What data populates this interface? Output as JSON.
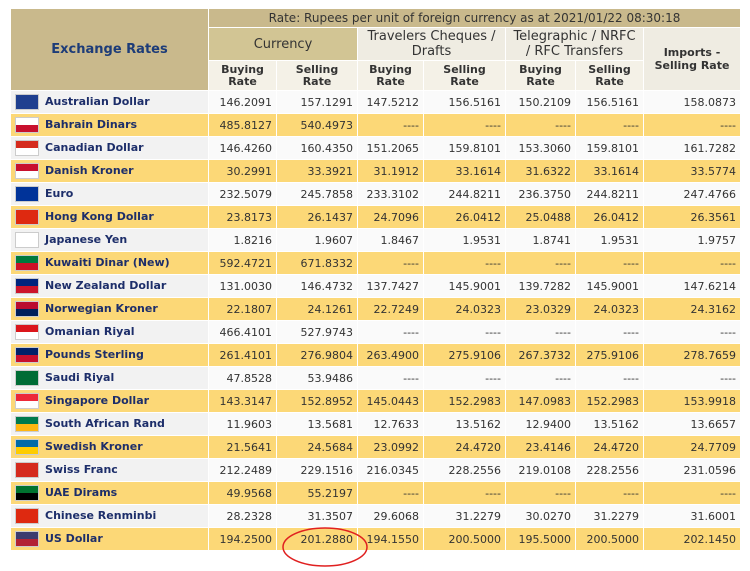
{
  "header": {
    "title": "Exchange Rates",
    "rate_note": "Rate: Rupees per unit of foreign currency as at 2021/01/22  08:30:18",
    "groups": [
      "Currency",
      "Travelers Cheques / Drafts",
      "Telegraphic / NRFC / RFC Transfers",
      "Imports - Selling Rate"
    ],
    "subheaders": [
      "Buying Rate",
      "Selling Rate",
      "Buying Rate",
      "Selling Rate",
      "Buying Rate",
      "Selling Rate"
    ]
  },
  "table": {
    "rows": [
      [
        "Australian Dollar",
        "146.2091",
        "157.1291",
        "147.5212",
        "156.5161",
        "150.2109",
        "156.5161",
        "158.0873"
      ],
      [
        "Bahrain Dinars",
        "485.8127",
        "540.4973",
        "----",
        "----",
        "----",
        "----",
        "----"
      ],
      [
        "Canadian Dollar",
        "146.4260",
        "160.4350",
        "151.2065",
        "159.8101",
        "153.3060",
        "159.8101",
        "161.7282"
      ],
      [
        "Danish Kroner",
        "30.2991",
        "33.3921",
        "31.1912",
        "33.1614",
        "31.6322",
        "33.1614",
        "33.5774"
      ],
      [
        "Euro",
        "232.5079",
        "245.7858",
        "233.3102",
        "244.8211",
        "236.3750",
        "244.8211",
        "247.4766"
      ],
      [
        "Hong Kong Dollar",
        "23.8173",
        "26.1437",
        "24.7096",
        "26.0412",
        "25.0488",
        "26.0412",
        "26.3561"
      ],
      [
        "Japanese Yen",
        "1.8216",
        "1.9607",
        "1.8467",
        "1.9531",
        "1.8741",
        "1.9531",
        "1.9757"
      ],
      [
        "Kuwaiti Dinar (New)",
        "592.4721",
        "671.8332",
        "----",
        "----",
        "----",
        "----",
        "----"
      ],
      [
        "New Zealand Dollar",
        "131.0030",
        "146.4732",
        "137.7427",
        "145.9001",
        "139.7282",
        "145.9001",
        "147.6214"
      ],
      [
        "Norwegian Kroner",
        "22.1807",
        "24.1261",
        "22.7249",
        "24.0323",
        "23.0329",
        "24.0323",
        "24.3162"
      ],
      [
        "Omanian Riyal",
        "466.4101",
        "527.9743",
        "----",
        "----",
        "----",
        "----",
        "----"
      ],
      [
        "Pounds Sterling",
        "261.4101",
        "276.9804",
        "263.4900",
        "275.9106",
        "267.3732",
        "275.9106",
        "278.7659"
      ],
      [
        "Saudi Riyal",
        "47.8528",
        "53.9486",
        "----",
        "----",
        "----",
        "----",
        "----"
      ],
      [
        "Singapore Dollar",
        "143.3147",
        "152.8952",
        "145.0443",
        "152.2983",
        "147.0983",
        "152.2983",
        "153.9918"
      ],
      [
        "South African Rand",
        "11.9603",
        "13.5681",
        "12.7633",
        "13.5162",
        "12.9400",
        "13.5162",
        "13.6657"
      ],
      [
        "Swedish Kroner",
        "21.5641",
        "24.5684",
        "23.0992",
        "24.4720",
        "23.4146",
        "24.4720",
        "24.7709"
      ],
      [
        "Swiss Franc",
        "212.2489",
        "229.1516",
        "216.0345",
        "228.2556",
        "219.0108",
        "228.2556",
        "231.0596"
      ],
      [
        "UAE Dirams",
        "49.9568",
        "55.2197",
        "----",
        "----",
        "----",
        "----",
        "----"
      ],
      [
        "Chinese Renminbi",
        "28.2328",
        "31.3507",
        "29.6068",
        "31.2279",
        "30.0270",
        "31.2279",
        "31.6001"
      ],
      [
        "US Dollar",
        "194.2500",
        "201.2880",
        "194.1550",
        "200.5000",
        "195.5000",
        "200.5000",
        "202.1450"
      ]
    ]
  }
}
